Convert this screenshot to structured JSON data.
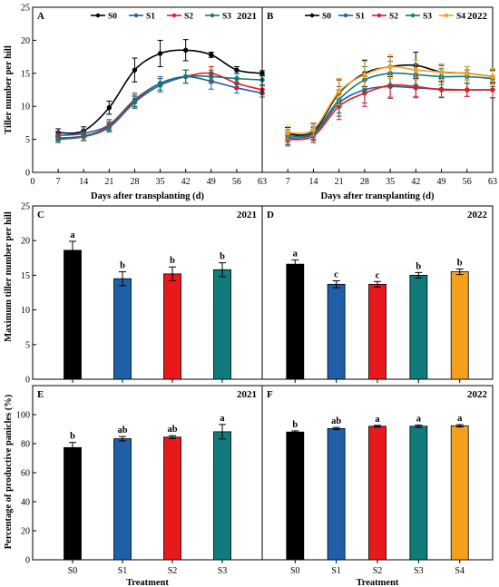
{
  "colors": {
    "S0": "#000000",
    "S1": "#1f5fa8",
    "S2": "#e8191c",
    "S3": "#117a7a",
    "S4": "#f5a01a"
  },
  "chart_data": [
    {
      "panel": "A",
      "year": "2021",
      "type": "line",
      "ylabel": "Tiller number per hill",
      "xlabel": "Days after transplanting (d)",
      "xlim": [
        0,
        63
      ],
      "ylim": [
        0,
        25
      ],
      "xticks": [
        "0",
        "7",
        "14",
        "21",
        "28",
        "35",
        "42",
        "49",
        "56",
        "63"
      ],
      "yticks": [
        "0",
        "5",
        "10",
        "15",
        "20",
        "25"
      ],
      "x": [
        7,
        14,
        21,
        28,
        35,
        42,
        49,
        56,
        63
      ],
      "series": [
        {
          "name": "S0",
          "color_key": "S0",
          "values": [
            6.0,
            6.3,
            9.8,
            15.5,
            18.0,
            18.5,
            17.8,
            15.5,
            15.0
          ],
          "errors": [
            0.6,
            0.6,
            1.0,
            1.8,
            2.0,
            1.6,
            0.4,
            0.5,
            0.4
          ]
        },
        {
          "name": "S1",
          "color_key": "S1",
          "values": [
            5.6,
            5.9,
            7.2,
            11.0,
            13.5,
            14.5,
            13.8,
            12.8,
            12.0
          ],
          "errors": [
            0.6,
            0.6,
            0.8,
            1.0,
            1.0,
            1.0,
            1.2,
            0.8,
            0.6
          ]
        },
        {
          "name": "S2",
          "color_key": "S2",
          "values": [
            5.2,
            5.5,
            7.0,
            10.8,
            13.2,
            14.5,
            15.0,
            13.5,
            12.5
          ],
          "errors": [
            0.5,
            0.6,
            0.7,
            0.9,
            1.0,
            1.0,
            1.0,
            0.8,
            0.6
          ]
        },
        {
          "name": "S3",
          "color_key": "S3",
          "values": [
            5.0,
            5.4,
            6.8,
            10.6,
            13.2,
            14.5,
            14.5,
            14.2,
            14.0
          ],
          "errors": [
            0.5,
            0.6,
            0.7,
            0.9,
            1.0,
            1.0,
            1.0,
            0.8,
            0.7
          ]
        }
      ]
    },
    {
      "panel": "B",
      "year": "2022",
      "type": "line",
      "xlabel": "Days after transplanting (d)",
      "xlim": [
        0,
        63
      ],
      "ylim": [
        0,
        25
      ],
      "xticks": [
        "0",
        "7",
        "14",
        "21",
        "28",
        "35",
        "42",
        "49",
        "56",
        "63"
      ],
      "x": [
        7,
        14,
        21,
        28,
        35,
        42,
        49,
        56,
        63
      ],
      "series": [
        {
          "name": "S0",
          "color_key": "S0",
          "values": [
            5.8,
            6.2,
            12.0,
            15.0,
            16.0,
            16.2,
            15.2,
            15.0,
            14.5
          ],
          "errors": [
            1.0,
            1.2,
            2.0,
            2.0,
            1.5,
            2.0,
            1.0,
            1.0,
            1.0
          ]
        },
        {
          "name": "S1",
          "color_key": "S1",
          "values": [
            5.2,
            5.8,
            10.5,
            12.5,
            13.0,
            12.8,
            12.6,
            12.5,
            12.5
          ],
          "errors": [
            1.0,
            1.0,
            2.0,
            2.0,
            1.8,
            1.5,
            1.2,
            1.0,
            1.2
          ]
        },
        {
          "name": "S2",
          "color_key": "S2",
          "values": [
            5.0,
            5.5,
            10.0,
            12.0,
            13.2,
            13.0,
            12.5,
            12.5,
            12.5
          ],
          "errors": [
            1.0,
            1.0,
            2.0,
            2.0,
            1.8,
            1.5,
            1.2,
            1.0,
            1.2
          ]
        },
        {
          "name": "S3",
          "color_key": "S3",
          "values": [
            5.5,
            6.0,
            11.0,
            14.0,
            15.0,
            14.8,
            14.5,
            14.5,
            14.2
          ],
          "errors": [
            1.0,
            1.0,
            2.0,
            2.0,
            1.8,
            1.5,
            1.2,
            1.0,
            1.2
          ]
        },
        {
          "name": "S4",
          "color_key": "S4",
          "values": [
            6.0,
            6.5,
            12.2,
            14.8,
            16.0,
            15.5,
            15.2,
            15.0,
            14.5
          ],
          "errors": [
            1.0,
            1.0,
            2.0,
            2.0,
            1.8,
            1.5,
            1.2,
            1.0,
            1.2
          ]
        }
      ]
    },
    {
      "panel": "C",
      "year": "2021",
      "type": "bar",
      "ylabel": "Maximum tiller number per hill",
      "ylim": [
        0,
        25
      ],
      "yticks": [
        "0",
        "5",
        "10",
        "15",
        "20",
        "25"
      ],
      "categories": [
        "S0",
        "S1",
        "S2",
        "S3"
      ],
      "values": [
        18.6,
        14.5,
        15.2,
        15.8
      ],
      "errors": [
        1.3,
        1.0,
        1.0,
        1.0
      ],
      "letters": [
        "a",
        "b",
        "b",
        "b"
      ]
    },
    {
      "panel": "D",
      "year": "2022",
      "type": "bar",
      "ylim": [
        0,
        25
      ],
      "categories": [
        "S0",
        "S1",
        "S2",
        "S3",
        "S4"
      ],
      "values": [
        16.6,
        13.7,
        13.7,
        15.0,
        15.5
      ],
      "errors": [
        0.6,
        0.5,
        0.4,
        0.4,
        0.4
      ],
      "letters": [
        "a",
        "c",
        "c",
        "b",
        "b"
      ]
    },
    {
      "panel": "E",
      "year": "2021",
      "type": "bar",
      "ylabel": "Percentage of productive panicles  (%)",
      "xlabel": "Treatment",
      "ylim": [
        0,
        120
      ],
      "yticks": [
        "0",
        "20",
        "40",
        "60",
        "80",
        "100"
      ],
      "categories": [
        "S0",
        "S1",
        "S2",
        "S3"
      ],
      "values": [
        77.3,
        83.4,
        84.5,
        88.2
      ],
      "errors": [
        3.5,
        1.5,
        1.0,
        5.0
      ],
      "letters": [
        "b",
        "ab",
        "ab",
        "a"
      ]
    },
    {
      "panel": "F",
      "year": "2022",
      "type": "bar",
      "xlabel": "Treatment",
      "ylim": [
        0,
        120
      ],
      "categories": [
        "S0",
        "S1",
        "S2",
        "S3",
        "S4"
      ],
      "values": [
        88.0,
        90.4,
        92.0,
        92.0,
        92.3
      ],
      "errors": [
        0.8,
        0.8,
        0.6,
        0.8,
        0.8
      ],
      "letters": [
        "b",
        "ab",
        "a",
        "a",
        "a"
      ]
    }
  ]
}
